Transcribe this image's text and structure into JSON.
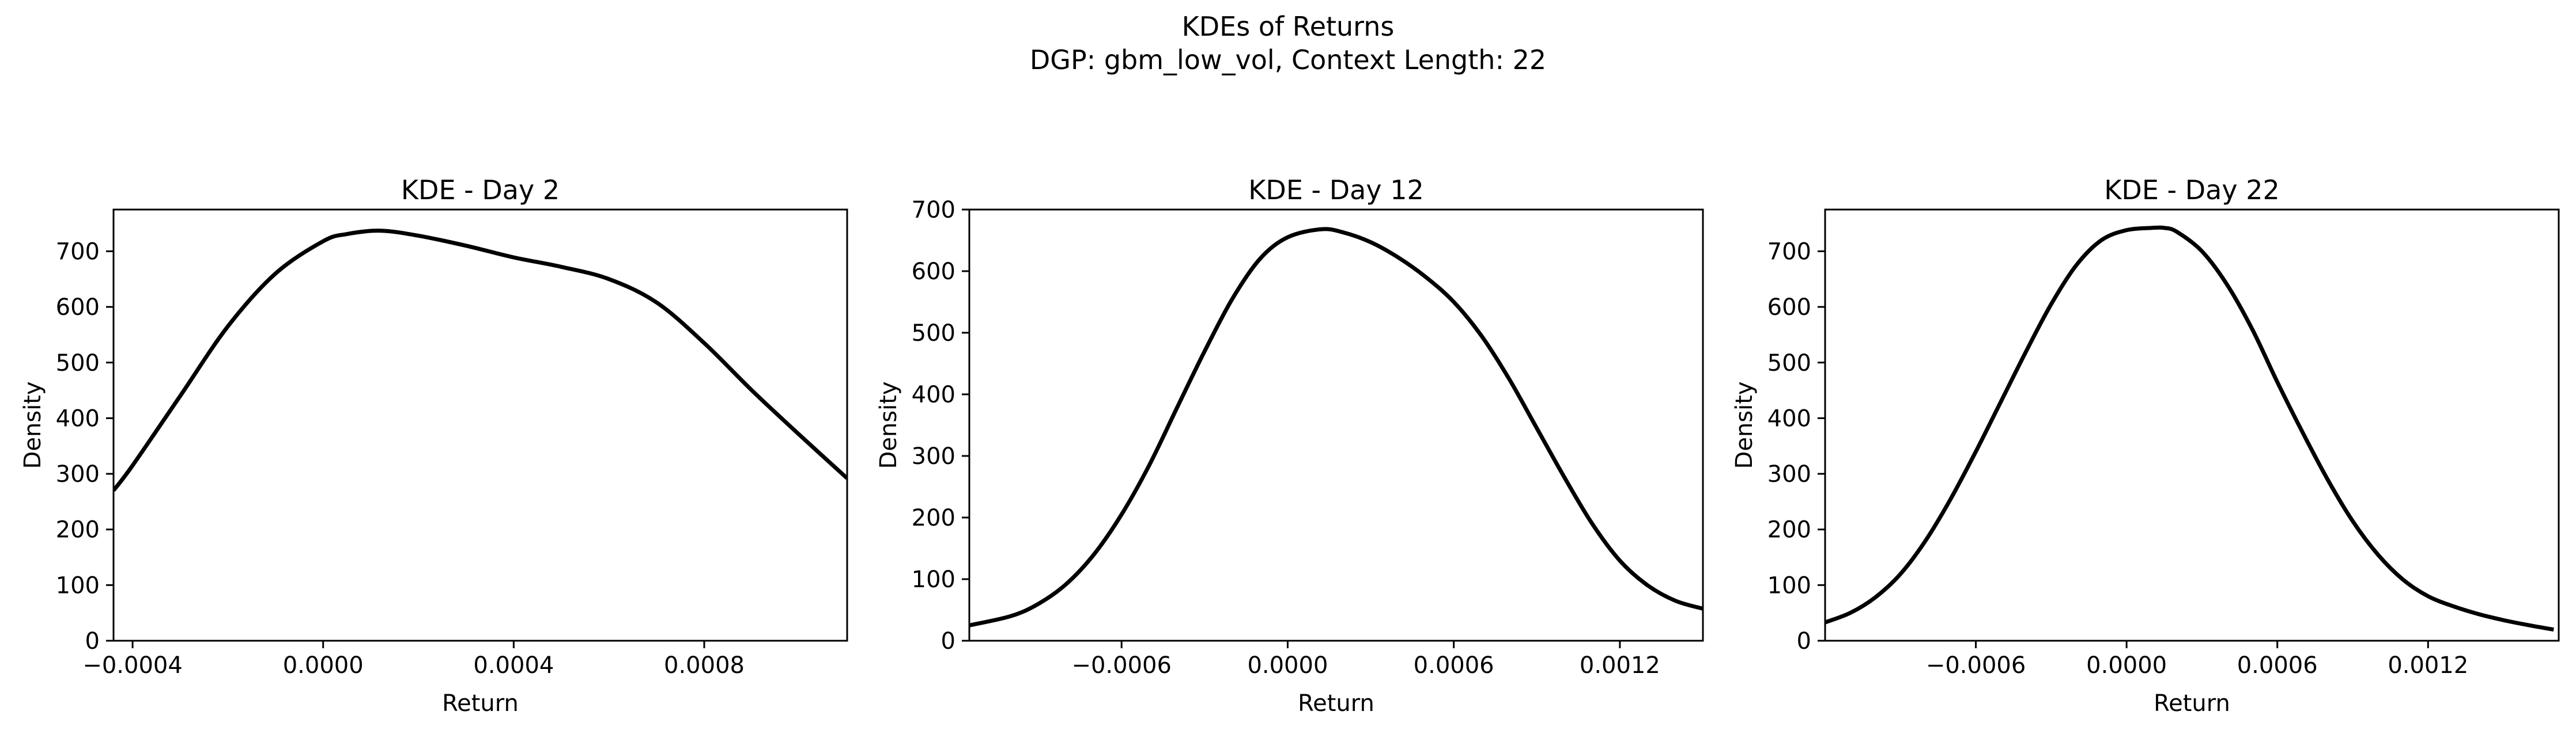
{
  "figure": {
    "title": "KDEs of Returns",
    "subtitle": "DGP: gbm_low_vol, Context Length: 22"
  },
  "chart_data": [
    {
      "type": "line",
      "title": "KDE - Day 2",
      "xlabel": "Return",
      "ylabel": "Density",
      "xlim": [
        -0.00044,
        0.0011
      ],
      "ylim": [
        0,
        775
      ],
      "xticks": [
        -0.0004,
        0.0,
        0.0004,
        0.0008
      ],
      "xtick_labels": [
        "−0.0004",
        "0.0000",
        "0.0004",
        "0.0008"
      ],
      "yticks": [
        0,
        100,
        200,
        300,
        400,
        500,
        600,
        700
      ],
      "yticks_labels": [
        "0",
        "100",
        "200",
        "300",
        "400",
        "500",
        "600",
        "700"
      ],
      "grid": false,
      "series": [
        {
          "color": "#000000",
          "x": [
            -0.00044,
            -0.0004,
            -0.0003,
            -0.0002,
            -0.0001,
            0.0,
            5e-05,
            0.00012,
            0.0002,
            0.0003,
            0.0004,
            0.0005,
            0.0006,
            0.0007,
            0.0008,
            0.0009,
            0.001,
            0.0011
          ],
          "y": [
            270,
            315,
            440,
            565,
            660,
            718,
            731,
            737,
            728,
            710,
            689,
            672,
            650,
            608,
            535,
            450,
            370,
            292
          ]
        }
      ]
    },
    {
      "type": "line",
      "title": "KDE - Day 12",
      "xlabel": "Return",
      "ylabel": "Density",
      "xlim": [
        -0.00115,
        0.0015
      ],
      "ylim": [
        0,
        700
      ],
      "xticks": [
        -0.0006,
        0.0,
        0.0006,
        0.0012
      ],
      "xtick_labels": [
        "−0.0006",
        "0.0000",
        "0.0006",
        "0.0012"
      ],
      "yticks": [
        0,
        100,
        200,
        300,
        400,
        500,
        600,
        700
      ],
      "yticks_labels": [
        "0",
        "100",
        "200",
        "300",
        "400",
        "500",
        "600",
        "700"
      ],
      "grid": false,
      "series": [
        {
          "color": "#000000",
          "x": [
            -0.00115,
            -0.001,
            -0.0009,
            -0.0008,
            -0.0007,
            -0.0006,
            -0.0005,
            -0.0004,
            -0.0003,
            -0.0002,
            -0.0001,
            0.0,
            0.00012,
            0.0002,
            0.0003,
            0.0004,
            0.0005,
            0.0006,
            0.0007,
            0.0008,
            0.0009,
            0.001,
            0.0011,
            0.0012,
            0.0013,
            0.0014,
            0.0015
          ],
          "y": [
            25,
            40,
            60,
            92,
            140,
            205,
            285,
            378,
            470,
            555,
            620,
            655,
            668,
            663,
            647,
            622,
            590,
            550,
            495,
            425,
            345,
            265,
            190,
            130,
            90,
            65,
            52
          ]
        }
      ]
    },
    {
      "type": "line",
      "title": "KDE - Day 22",
      "xlabel": "Return",
      "ylabel": "Density",
      "xlim": [
        -0.0012,
        0.00172
      ],
      "ylim": [
        0,
        775
      ],
      "xticks": [
        -0.0006,
        0.0,
        0.0006,
        0.0012
      ],
      "xtick_labels": [
        "−0.0006",
        "0.0000",
        "0.0006",
        "0.0012"
      ],
      "yticks": [
        0,
        100,
        200,
        300,
        400,
        500,
        600,
        700
      ],
      "yticks_labels": [
        "0",
        "100",
        "200",
        "300",
        "400",
        "500",
        "600",
        "700"
      ],
      "grid": false,
      "series": [
        {
          "color": "#000000",
          "x": [
            -0.0012,
            -0.0011,
            -0.001,
            -0.0009,
            -0.0008,
            -0.0007,
            -0.0006,
            -0.0005,
            -0.0004,
            -0.0003,
            -0.0002,
            -0.0001,
            0.0,
            0.0001,
            0.00015,
            0.0002,
            0.0003,
            0.0004,
            0.0005,
            0.0006,
            0.0007,
            0.0008,
            0.0009,
            0.001,
            0.0011,
            0.0012,
            0.0013,
            0.0014,
            0.0015,
            0.0016,
            0.0017
          ],
          "y": [
            33,
            50,
            78,
            120,
            180,
            255,
            340,
            430,
            520,
            605,
            675,
            720,
            738,
            742,
            742,
            735,
            700,
            640,
            560,
            465,
            375,
            290,
            215,
            155,
            110,
            80,
            62,
            48,
            37,
            28,
            20
          ]
        }
      ]
    }
  ]
}
